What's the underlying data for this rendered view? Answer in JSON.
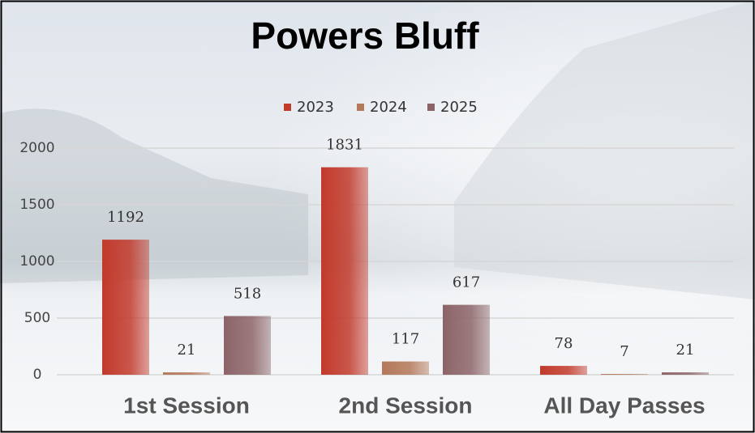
{
  "chart_data": {
    "type": "bar",
    "title": "Powers Bluff",
    "categories": [
      "1st Session",
      "2nd Session",
      "All Day Passes"
    ],
    "series": [
      {
        "name": "2023",
        "color": "#c23a2c",
        "values": [
          1192,
          1831,
          78
        ]
      },
      {
        "name": "2024",
        "color": "#b4785a",
        "values": [
          21,
          117,
          7
        ]
      },
      {
        "name": "2025",
        "color": "#8c6468",
        "values": [
          518,
          617,
          21
        ]
      }
    ],
    "ylim": [
      0,
      2000
    ],
    "yticks": [
      0,
      500,
      1000,
      1500,
      2000
    ],
    "grid": true,
    "legend": "top"
  }
}
